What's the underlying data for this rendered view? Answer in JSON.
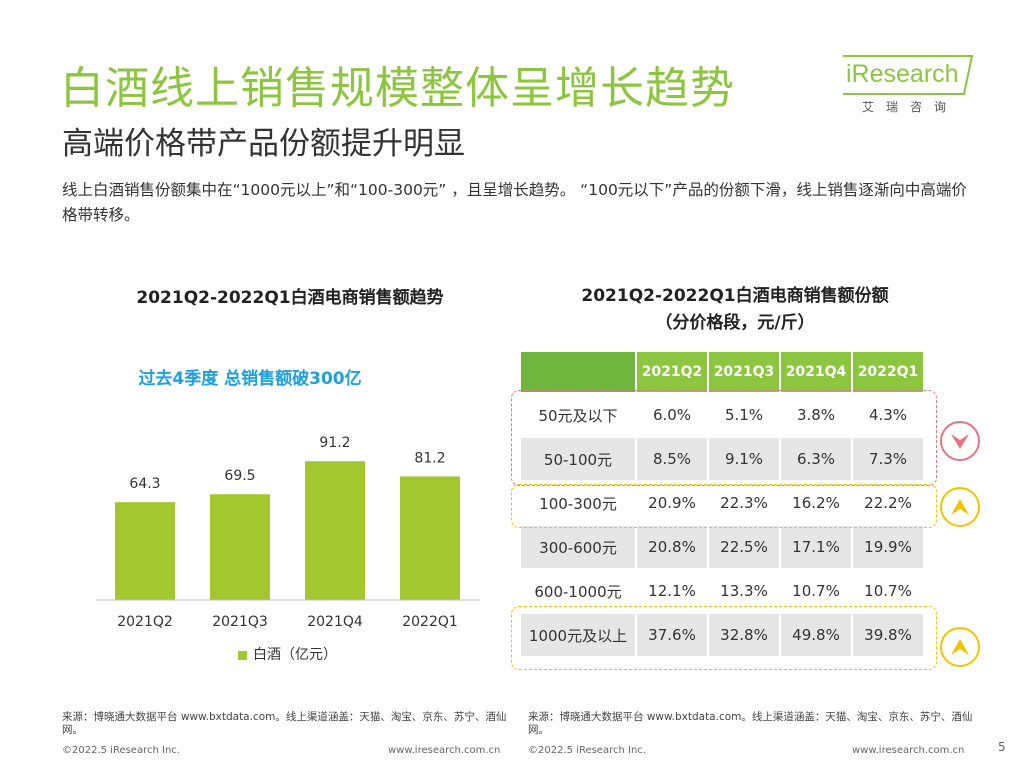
{
  "header": {
    "title": "白酒线上销售规模整体呈增长趋势",
    "subtitle": "高端价格带产品份额提升明显",
    "description": "线上白酒销售份额集中在“1000元以上”和“100-300元” ，且呈增长趋势。 “100元以下”产品的份额下滑，线上销售逐渐向中高端价格带转移。"
  },
  "logo": {
    "text": "iResearch",
    "sub": "艾瑞咨询"
  },
  "colors": {
    "brand_green": "#8cc63f",
    "bar_green": "#a3c82f",
    "callout_blue": "#1fa0dc",
    "down_red": "#e8737e",
    "up_yellow": "#f4c300"
  },
  "chart_data": [
    {
      "type": "bar",
      "title": "2021Q2-2022Q1白酒电商销售额趋势",
      "annotation": "过去4季度 总销售额破300亿",
      "categories": [
        "2021Q2",
        "2021Q3",
        "2021Q4",
        "2022Q1"
      ],
      "series": [
        {
          "name": "白酒（亿元）",
          "values": [
            64.3,
            69.5,
            91.2,
            81.2
          ]
        }
      ],
      "legend": "白酒（亿元）",
      "ylim": [
        0,
        115
      ]
    },
    {
      "type": "table",
      "title_line1": "2021Q2-2022Q1白酒电商销售额份额",
      "title_line2": "（分价格段，元/斤）",
      "columns": [
        "2021Q2",
        "2021Q3",
        "2021Q4",
        "2022Q1"
      ],
      "rows": [
        {
          "category": "50元及以下",
          "values": [
            "6.0%",
            "5.1%",
            "3.8%",
            "4.3%"
          ]
        },
        {
          "category": "50-100元",
          "values": [
            "8.5%",
            "9.1%",
            "6.3%",
            "7.3%"
          ]
        },
        {
          "category": "100-300元",
          "values": [
            "20.9%",
            "22.3%",
            "16.2%",
            "22.2%"
          ]
        },
        {
          "category": "300-600元",
          "values": [
            "20.8%",
            "22.5%",
            "17.1%",
            "19.9%"
          ]
        },
        {
          "category": "600-1000元",
          "values": [
            "12.1%",
            "13.3%",
            "10.7%",
            "10.7%"
          ]
        },
        {
          "category": "1000元及以上",
          "values": [
            "37.6%",
            "32.8%",
            "49.8%",
            "39.8%"
          ]
        }
      ]
    }
  ],
  "footer": {
    "source_left": "来源：博晓通大数据平台 www.bxtdata.com。线上渠道涵盖：天猫、淘宝、京东、苏宁、酒仙网。",
    "source_right": "来源：博晓通大数据平台 www.bxtdata.com。线上渠道涵盖：天猫、淘宝、京东、苏宁、酒仙网。",
    "copyright": "©2022.5 iResearch Inc.",
    "url": "www.iresearch.com.cn",
    "page": "5"
  }
}
